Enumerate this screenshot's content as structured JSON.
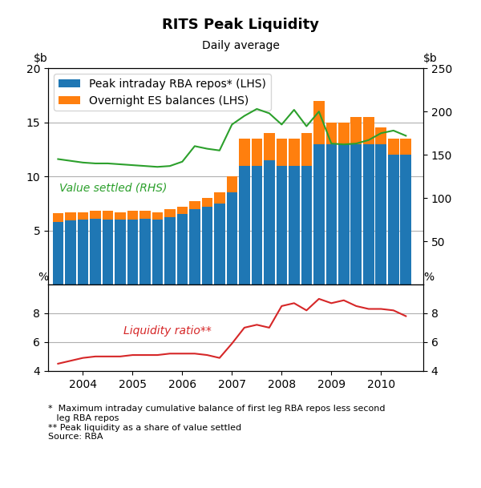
{
  "chart_data": [
    {
      "type": "bar",
      "title": "RITS Peak Liquidity",
      "subtitle": "Daily average",
      "footnotes": [
        "*  Maximum intraday cumulative balance of first leg RBA repos less second",
        "   leg RBA repos",
        "** Peak liquidity as a share of value settled",
        "Source: RBA"
      ],
      "x": [
        2003.5,
        2003.75,
        2004.0,
        2004.25,
        2004.5,
        2004.75,
        2005.0,
        2005.25,
        2005.5,
        2005.75,
        2006.0,
        2006.25,
        2006.5,
        2006.75,
        2007.0,
        2007.25,
        2007.5,
        2007.75,
        2008.0,
        2008.25,
        2008.5,
        2008.75,
        2009.0,
        2009.25,
        2009.5,
        2009.75,
        2010.0,
        2010.25,
        2010.5
      ],
      "xlim": [
        2003.3,
        2010.85
      ],
      "xticks": [
        2004,
        2005,
        2006,
        2007,
        2008,
        2009,
        2010
      ],
      "ylim": [
        0,
        20
      ],
      "yticks": [
        5,
        10,
        15,
        20
      ],
      "ylabel": "$b",
      "y2lim": [
        0,
        250
      ],
      "y2ticks": [
        50,
        100,
        150,
        200,
        250
      ],
      "y2label": "$b",
      "stacked": true,
      "grid": true,
      "legend": "upper left",
      "tick_labels": "y",
      "series": [
        {
          "name": "Peak intraday RBA repos* (LHS)",
          "type": "bar",
          "values": [
            5.8,
            5.9,
            6.0,
            6.1,
            6.0,
            6.0,
            6.0,
            6.1,
            6.0,
            6.2,
            6.5,
            7.0,
            7.2,
            7.5,
            8.5,
            11.0,
            11.0,
            11.5,
            11.0,
            11.0,
            11.0,
            13.0,
            13.0,
            13.0,
            13.0,
            13.0,
            13.0,
            12.0,
            12.0
          ]
        },
        {
          "name": "Overnight ES balances (LHS)",
          "type": "bar",
          "values": [
            0.8,
            0.8,
            0.7,
            0.7,
            0.8,
            0.7,
            0.8,
            0.7,
            0.7,
            0.8,
            0.7,
            0.7,
            0.8,
            1.0,
            1.5,
            2.5,
            2.5,
            2.5,
            2.5,
            2.5,
            3.0,
            4.0,
            2.0,
            2.0,
            2.5,
            2.5,
            1.5,
            1.5,
            1.5
          ]
        },
        {
          "name": "Value settled (RHS)",
          "type": "line",
          "axis": "y2",
          "values": [
            145,
            143,
            141,
            140,
            140,
            139,
            138,
            137,
            136,
            137,
            142,
            160,
            157,
            155,
            185,
            195,
            203,
            198,
            185,
            202,
            183,
            200,
            163,
            162,
            163,
            167,
            175,
            178,
            172
          ]
        }
      ]
    },
    {
      "type": "line",
      "x": [
        2003.5,
        2003.75,
        2004.0,
        2004.25,
        2004.5,
        2004.75,
        2005.0,
        2005.25,
        2005.5,
        2005.75,
        2006.0,
        2006.25,
        2006.5,
        2006.75,
        2007.0,
        2007.25,
        2007.5,
        2007.75,
        2008.0,
        2008.25,
        2008.5,
        2008.75,
        2009.0,
        2009.25,
        2009.5,
        2009.75,
        2010.0,
        2010.25,
        2010.5
      ],
      "xlim": [
        2003.3,
        2010.85
      ],
      "xticks": [
        2004,
        2005,
        2006,
        2007,
        2008,
        2009,
        2010
      ],
      "ylim": [
        4,
        10
      ],
      "yticks": [
        4,
        6,
        8
      ],
      "ylabel": "%",
      "y2lim": [
        4,
        10
      ],
      "y2ticks": [
        4,
        6,
        8
      ],
      "y2label": "%",
      "grid": true,
      "series": [
        {
          "name": "Liquidity ratio**",
          "values": [
            4.5,
            4.7,
            4.9,
            5.0,
            5.0,
            5.0,
            5.1,
            5.1,
            5.1,
            5.2,
            5.2,
            5.2,
            5.1,
            4.9,
            5.9,
            7.0,
            7.2,
            7.0,
            8.5,
            8.7,
            8.2,
            9.0,
            8.7,
            8.9,
            8.5,
            8.3,
            8.3,
            8.2,
            7.8
          ]
        }
      ]
    }
  ]
}
